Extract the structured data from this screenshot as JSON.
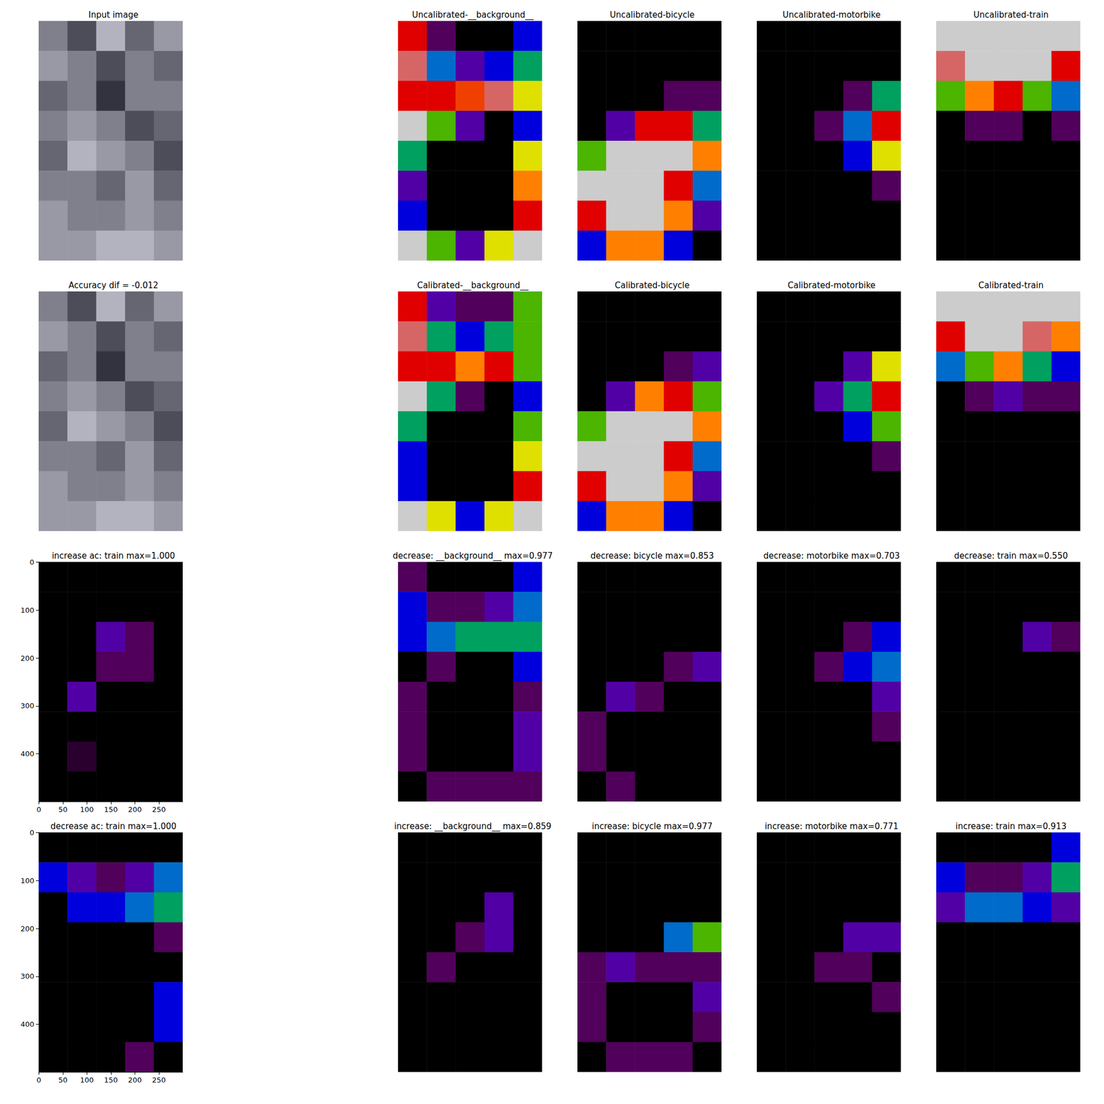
{
  "chart_data": [
    {
      "type": "image",
      "title": "Input image",
      "tick_labels": false,
      "cells": [
        [
          0.5,
          0.3,
          0.7,
          0.4,
          0.6
        ],
        [
          0.6,
          0.5,
          0.3,
          0.5,
          0.4
        ],
        [
          0.4,
          0.5,
          0.2,
          0.5,
          0.5
        ],
        [
          0.5,
          0.6,
          0.5,
          0.3,
          0.4
        ],
        [
          0.4,
          0.7,
          0.6,
          0.5,
          0.3
        ],
        [
          0.5,
          0.5,
          0.4,
          0.6,
          0.4
        ],
        [
          0.6,
          0.5,
          0.5,
          0.6,
          0.5
        ],
        [
          0.6,
          0.6,
          0.7,
          0.7,
          0.6
        ]
      ]
    },
    {
      "type": "heatmap",
      "title": "Uncalibrated-__background__",
      "tick_labels": false,
      "cells": [
        [
          0.9,
          0.1,
          0,
          0,
          0.3
        ],
        [
          0.95,
          0.4,
          0.2,
          0.3,
          0.5
        ],
        [
          0.9,
          0.9,
          0.85,
          0.95,
          0.7
        ],
        [
          1,
          0.6,
          0.2,
          0,
          0.3
        ],
        [
          0.5,
          0,
          0,
          0,
          0.7
        ],
        [
          0.2,
          0,
          0,
          0,
          0.8
        ],
        [
          0.3,
          0,
          0,
          0,
          0.9
        ],
        [
          1,
          0.6,
          0.2,
          0.7,
          1
        ]
      ]
    },
    {
      "type": "heatmap",
      "title": "Uncalibrated-bicycle",
      "tick_labels": false,
      "cells": [
        [
          0,
          0,
          0,
          0,
          0
        ],
        [
          0,
          0,
          0,
          0,
          0
        ],
        [
          0,
          0,
          0,
          0.1,
          0.1
        ],
        [
          0,
          0.2,
          0.9,
          0.9,
          0.5
        ],
        [
          0.6,
          1,
          1,
          1,
          0.8
        ],
        [
          1,
          1,
          1,
          0.9,
          0.4
        ],
        [
          0.9,
          1,
          1,
          0.8,
          0.2
        ],
        [
          0.3,
          0.8,
          0.8,
          0.3,
          0
        ]
      ]
    },
    {
      "type": "heatmap",
      "title": "Uncalibrated-motorbike",
      "tick_labels": false,
      "cells": [
        [
          0,
          0,
          0,
          0,
          0
        ],
        [
          0,
          0,
          0,
          0,
          0
        ],
        [
          0,
          0,
          0,
          0.1,
          0.5
        ],
        [
          0,
          0,
          0.1,
          0.4,
          0.9
        ],
        [
          0,
          0,
          0,
          0.3,
          0.7
        ],
        [
          0,
          0,
          0,
          0,
          0.1
        ],
        [
          0,
          0,
          0,
          0,
          0
        ],
        [
          0,
          0,
          0,
          0,
          0
        ]
      ]
    },
    {
      "type": "heatmap",
      "title": "Uncalibrated-train",
      "tick_labels": false,
      "cells": [
        [
          1,
          1,
          1,
          1,
          1
        ],
        [
          0.95,
          1,
          1,
          1,
          0.9
        ],
        [
          0.6,
          0.8,
          0.9,
          0.6,
          0.4
        ],
        [
          0,
          0.1,
          0.1,
          0,
          0.1
        ],
        [
          0,
          0,
          0,
          0,
          0
        ],
        [
          0,
          0,
          0,
          0,
          0
        ],
        [
          0,
          0,
          0,
          0,
          0
        ],
        [
          0,
          0,
          0,
          0,
          0
        ]
      ]
    },
    {
      "type": "image",
      "title": "Accuracy dif = -0.012",
      "tick_labels": false,
      "cells": [
        [
          0.5,
          0.3,
          0.7,
          0.4,
          0.6
        ],
        [
          0.6,
          0.5,
          0.3,
          0.5,
          0.4
        ],
        [
          0.4,
          0.5,
          0.2,
          0.5,
          0.5
        ],
        [
          0.5,
          0.6,
          0.5,
          0.3,
          0.4
        ],
        [
          0.4,
          0.7,
          0.6,
          0.5,
          0.3
        ],
        [
          0.5,
          0.5,
          0.4,
          0.6,
          0.4
        ],
        [
          0.6,
          0.5,
          0.5,
          0.6,
          0.5
        ],
        [
          0.6,
          0.6,
          0.7,
          0.7,
          0.6
        ]
      ]
    },
    {
      "type": "heatmap",
      "title": "Calibrated-__background__",
      "tick_labels": false,
      "cells": [
        [
          0.9,
          0.2,
          0.1,
          0.1,
          0.6
        ],
        [
          0.95,
          0.5,
          0.3,
          0.5,
          0.6
        ],
        [
          0.9,
          0.9,
          0.8,
          0.9,
          0.6
        ],
        [
          1,
          0.5,
          0.1,
          0,
          0.3
        ],
        [
          0.5,
          0,
          0,
          0,
          0.6
        ],
        [
          0.3,
          0,
          0,
          0,
          0.7
        ],
        [
          0.3,
          0,
          0,
          0,
          0.9
        ],
        [
          1,
          0.7,
          0.3,
          0.7,
          1
        ]
      ]
    },
    {
      "type": "heatmap",
      "title": "Calibrated-bicycle",
      "tick_labels": false,
      "cells": [
        [
          0,
          0,
          0,
          0,
          0
        ],
        [
          0,
          0,
          0,
          0,
          0
        ],
        [
          0,
          0,
          0,
          0.1,
          0.2
        ],
        [
          0,
          0.2,
          0.8,
          0.9,
          0.6
        ],
        [
          0.6,
          1,
          1,
          1,
          0.8
        ],
        [
          1,
          1,
          1,
          0.9,
          0.4
        ],
        [
          0.9,
          1,
          1,
          0.8,
          0.2
        ],
        [
          0.3,
          0.8,
          0.8,
          0.3,
          0
        ]
      ]
    },
    {
      "type": "heatmap",
      "title": "Calibrated-motorbike",
      "tick_labels": false,
      "cells": [
        [
          0,
          0,
          0,
          0,
          0
        ],
        [
          0,
          0,
          0,
          0,
          0
        ],
        [
          0,
          0,
          0,
          0.2,
          0.7
        ],
        [
          0,
          0,
          0.2,
          0.5,
          0.9
        ],
        [
          0,
          0,
          0,
          0.3,
          0.6
        ],
        [
          0,
          0,
          0,
          0,
          0.1
        ],
        [
          0,
          0,
          0,
          0,
          0
        ],
        [
          0,
          0,
          0,
          0,
          0
        ]
      ]
    },
    {
      "type": "heatmap",
      "title": "Calibrated-train",
      "tick_labels": false,
      "cells": [
        [
          1,
          1,
          1,
          1,
          1
        ],
        [
          0.9,
          1,
          1,
          0.95,
          0.8
        ],
        [
          0.4,
          0.6,
          0.8,
          0.5,
          0.3
        ],
        [
          0,
          0.1,
          0.2,
          0.1,
          0.1
        ],
        [
          0,
          0,
          0,
          0,
          0
        ],
        [
          0,
          0,
          0,
          0,
          0
        ],
        [
          0,
          0,
          0,
          0,
          0
        ],
        [
          0,
          0,
          0,
          0,
          0
        ]
      ]
    },
    {
      "type": "heatmap",
      "title": "increase ac: train max=1.000",
      "xlim": [
        -0.5,
        299.5
      ],
      "ylim": [
        499.5,
        -0.5
      ],
      "xticks": [
        0,
        50,
        100,
        150,
        200,
        250
      ],
      "yticks": [
        0,
        100,
        200,
        300,
        400
      ],
      "cells": [
        [
          0,
          0,
          0,
          0,
          0
        ],
        [
          0,
          0,
          0,
          0,
          0
        ],
        [
          0,
          0,
          0.2,
          0.1,
          0
        ],
        [
          0,
          0,
          0.1,
          0.1,
          0
        ],
        [
          0,
          0.2,
          0,
          0,
          0
        ],
        [
          0,
          0,
          0,
          0,
          0
        ],
        [
          0,
          0.05,
          0,
          0,
          0
        ],
        [
          0,
          0,
          0,
          0,
          0
        ]
      ]
    },
    {
      "type": "heatmap",
      "title": "decrease: __background__ max=0.977",
      "tick_labels": false,
      "cells": [
        [
          0.1,
          0,
          0,
          0,
          0.3
        ],
        [
          0.3,
          0.1,
          0.1,
          0.2,
          0.4
        ],
        [
          0.3,
          0.4,
          0.5,
          0.5,
          0.5
        ],
        [
          0,
          0.1,
          0,
          0,
          0.3
        ],
        [
          0.1,
          0,
          0,
          0,
          0.1
        ],
        [
          0.1,
          0,
          0,
          0,
          0.2
        ],
        [
          0.1,
          0,
          0,
          0,
          0.2
        ],
        [
          0,
          0.1,
          0.1,
          0.1,
          0.1
        ]
      ]
    },
    {
      "type": "heatmap",
      "title": "decrease: bicycle max=0.853",
      "tick_labels": false,
      "cells": [
        [
          0,
          0,
          0,
          0,
          0
        ],
        [
          0,
          0,
          0,
          0,
          0
        ],
        [
          0,
          0,
          0,
          0,
          0
        ],
        [
          0,
          0,
          0,
          0.1,
          0.2
        ],
        [
          0,
          0.2,
          0.1,
          0,
          0
        ],
        [
          0.1,
          0,
          0,
          0,
          0
        ],
        [
          0.1,
          0,
          0,
          0,
          0
        ],
        [
          0,
          0.1,
          0,
          0,
          0
        ]
      ]
    },
    {
      "type": "heatmap",
      "title": "decrease: motorbike max=0.703",
      "tick_labels": false,
      "cells": [
        [
          0,
          0,
          0,
          0,
          0
        ],
        [
          0,
          0,
          0,
          0,
          0
        ],
        [
          0,
          0,
          0,
          0.1,
          0.3
        ],
        [
          0,
          0,
          0.1,
          0.3,
          0.4
        ],
        [
          0,
          0,
          0,
          0,
          0.2
        ],
        [
          0,
          0,
          0,
          0,
          0.1
        ],
        [
          0,
          0,
          0,
          0,
          0
        ],
        [
          0,
          0,
          0,
          0,
          0
        ]
      ]
    },
    {
      "type": "heatmap",
      "title": "decrease: train max=0.550",
      "tick_labels": false,
      "cells": [
        [
          0,
          0,
          0,
          0,
          0
        ],
        [
          0,
          0,
          0,
          0,
          0
        ],
        [
          0,
          0,
          0,
          0.2,
          0.1
        ],
        [
          0,
          0,
          0,
          0,
          0
        ],
        [
          0,
          0,
          0,
          0,
          0
        ],
        [
          0,
          0,
          0,
          0,
          0
        ],
        [
          0,
          0,
          0,
          0,
          0
        ],
        [
          0,
          0,
          0,
          0,
          0
        ]
      ]
    },
    {
      "type": "heatmap",
      "title": "decrease ac: train max=1.000",
      "xlim": [
        -0.5,
        299.5
      ],
      "ylim": [
        499.5,
        -0.5
      ],
      "xticks": [
        0,
        50,
        100,
        150,
        200,
        250
      ],
      "yticks": [
        0,
        100,
        200,
        300,
        400
      ],
      "cells": [
        [
          0,
          0,
          0,
          0,
          0
        ],
        [
          0.3,
          0.2,
          0.1,
          0.2,
          0.4
        ],
        [
          0,
          0.3,
          0.3,
          0.4,
          0.5
        ],
        [
          0,
          0,
          0,
          0,
          0.1
        ],
        [
          0,
          0,
          0,
          0,
          0
        ],
        [
          0,
          0,
          0,
          0,
          0.3
        ],
        [
          0,
          0,
          0,
          0,
          0.3
        ],
        [
          0,
          0,
          0,
          0.1,
          0
        ]
      ]
    },
    {
      "type": "heatmap",
      "title": "increase: __background__ max=0.859",
      "tick_labels": false,
      "cells": [
        [
          0,
          0,
          0,
          0,
          0
        ],
        [
          0,
          0,
          0,
          0,
          0
        ],
        [
          0,
          0,
          0,
          0.2,
          0
        ],
        [
          0,
          0,
          0.1,
          0.2,
          0
        ],
        [
          0,
          0.1,
          0,
          0,
          0
        ],
        [
          0,
          0,
          0,
          0,
          0
        ],
        [
          0,
          0,
          0,
          0,
          0
        ],
        [
          0,
          0,
          0,
          0,
          0
        ]
      ]
    },
    {
      "type": "heatmap",
      "title": "increase: bicycle max=0.977",
      "tick_labels": false,
      "cells": [
        [
          0,
          0,
          0,
          0,
          0
        ],
        [
          0,
          0,
          0,
          0,
          0
        ],
        [
          0,
          0,
          0,
          0,
          0
        ],
        [
          0,
          0,
          0,
          0.4,
          0.6
        ],
        [
          0.1,
          0.2,
          0.1,
          0.1,
          0.1
        ],
        [
          0.1,
          0,
          0,
          0,
          0.2
        ],
        [
          0.1,
          0,
          0,
          0,
          0.1
        ],
        [
          0,
          0.1,
          0.1,
          0.1,
          0
        ]
      ]
    },
    {
      "type": "heatmap",
      "title": "increase: motorbike max=0.771",
      "tick_labels": false,
      "cells": [
        [
          0,
          0,
          0,
          0,
          0
        ],
        [
          0,
          0,
          0,
          0,
          0
        ],
        [
          0,
          0,
          0,
          0,
          0
        ],
        [
          0,
          0,
          0,
          0.2,
          0.2
        ],
        [
          0,
          0,
          0.1,
          0.1,
          0
        ],
        [
          0,
          0,
          0,
          0,
          0.1
        ],
        [
          0,
          0,
          0,
          0,
          0
        ],
        [
          0,
          0,
          0,
          0,
          0
        ]
      ]
    },
    {
      "type": "heatmap",
      "title": "increase: train max=0.913",
      "tick_labels": false,
      "cells": [
        [
          0,
          0,
          0,
          0,
          0.3
        ],
        [
          0.3,
          0.1,
          0.1,
          0.2,
          0.5
        ],
        [
          0.2,
          0.4,
          0.4,
          0.3,
          0.2
        ],
        [
          0,
          0,
          0,
          0,
          0
        ],
        [
          0,
          0,
          0,
          0,
          0
        ],
        [
          0,
          0,
          0,
          0,
          0
        ],
        [
          0,
          0,
          0,
          0,
          0
        ],
        [
          0,
          0,
          0,
          0,
          0
        ]
      ]
    }
  ]
}
